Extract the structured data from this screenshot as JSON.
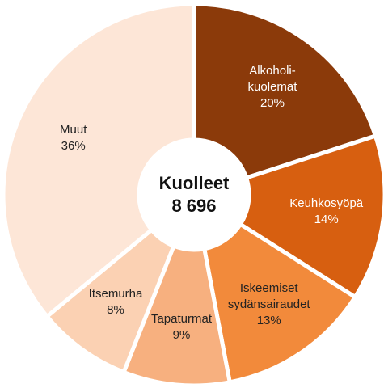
{
  "chart_data": {
    "type": "donut",
    "center_label": "Kuolleet",
    "center_value": "8 696",
    "categories": [
      "Alkoholi-\nkuolemat",
      "Keuhkosyöpä",
      "Iskeemiset\nsydänsairaudet",
      "Tapaturmat",
      "Itsemurha",
      "Muut"
    ],
    "values": [
      20,
      14,
      13,
      9,
      8,
      36
    ],
    "value_labels": [
      "20%",
      "14%",
      "13%",
      "9%",
      "8%",
      "36%"
    ],
    "colors": [
      "#8b3a0a",
      "#d75f10",
      "#f28a3b",
      "#f7b07f",
      "#fbd1b3",
      "#fde6d7"
    ]
  }
}
